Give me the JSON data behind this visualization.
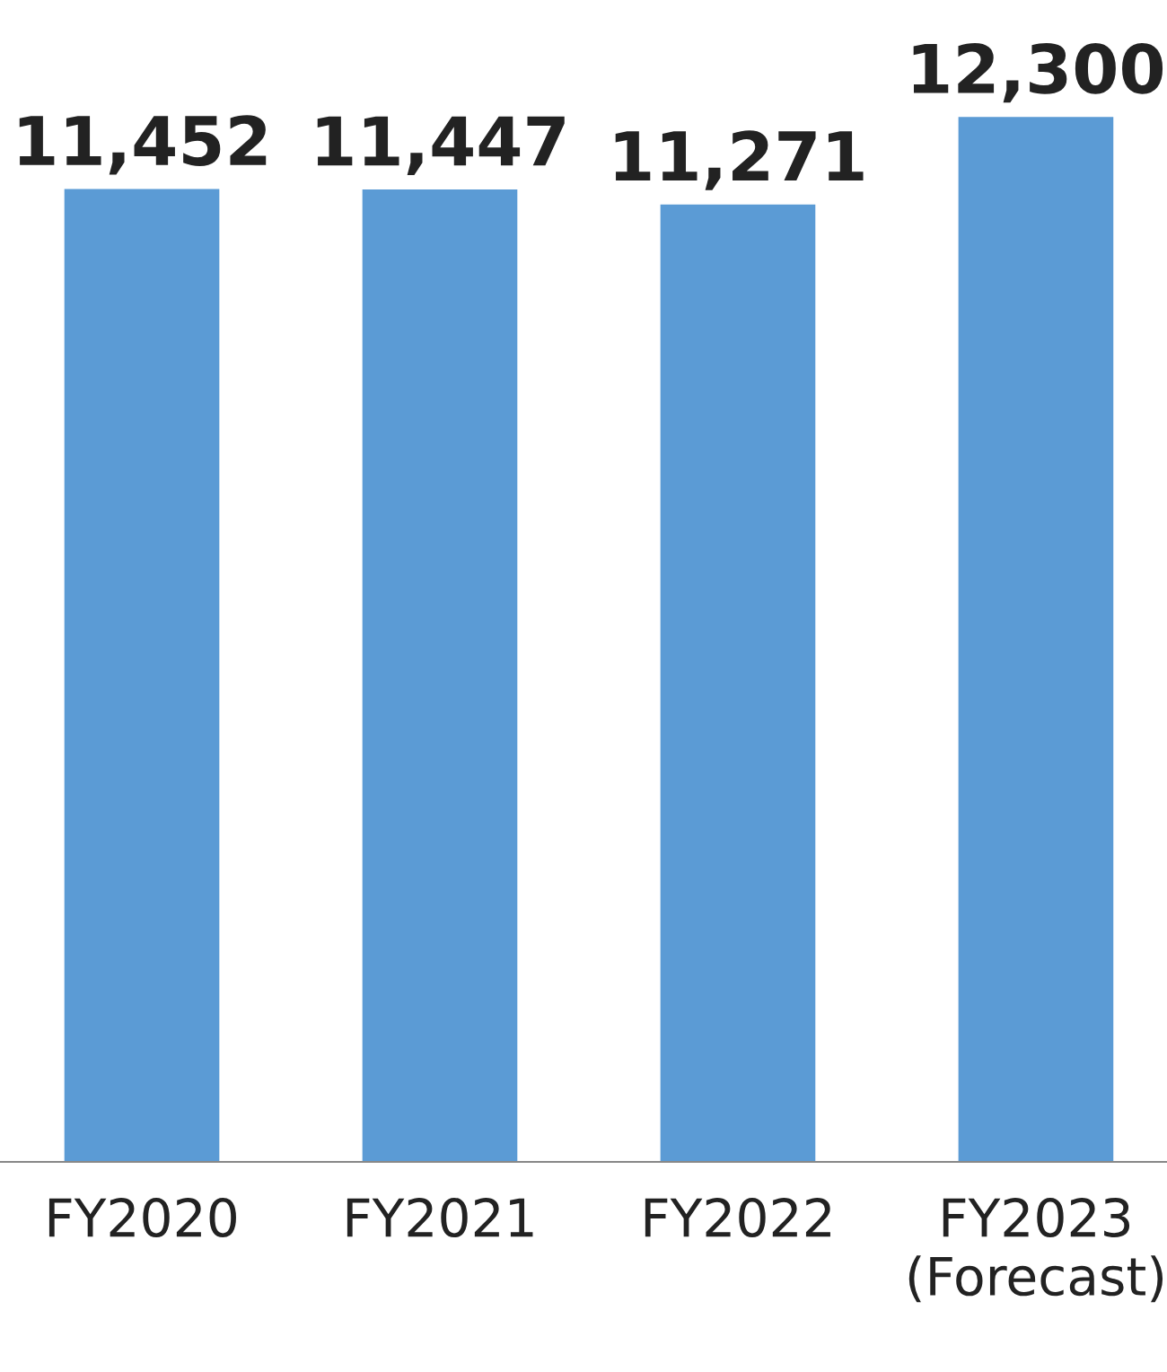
{
  "chart_data": {
    "type": "bar",
    "categories": [
      "FY2020",
      "FY2021",
      "FY2022",
      "FY2023\n(Forecast)"
    ],
    "values": [
      11452,
      11447,
      11271,
      12300
    ],
    "color": "#5b9bd5",
    "value_labels": [
      "11,452",
      "11,447",
      "11,271",
      "12,300"
    ],
    "grid": false,
    "legend": false
  }
}
